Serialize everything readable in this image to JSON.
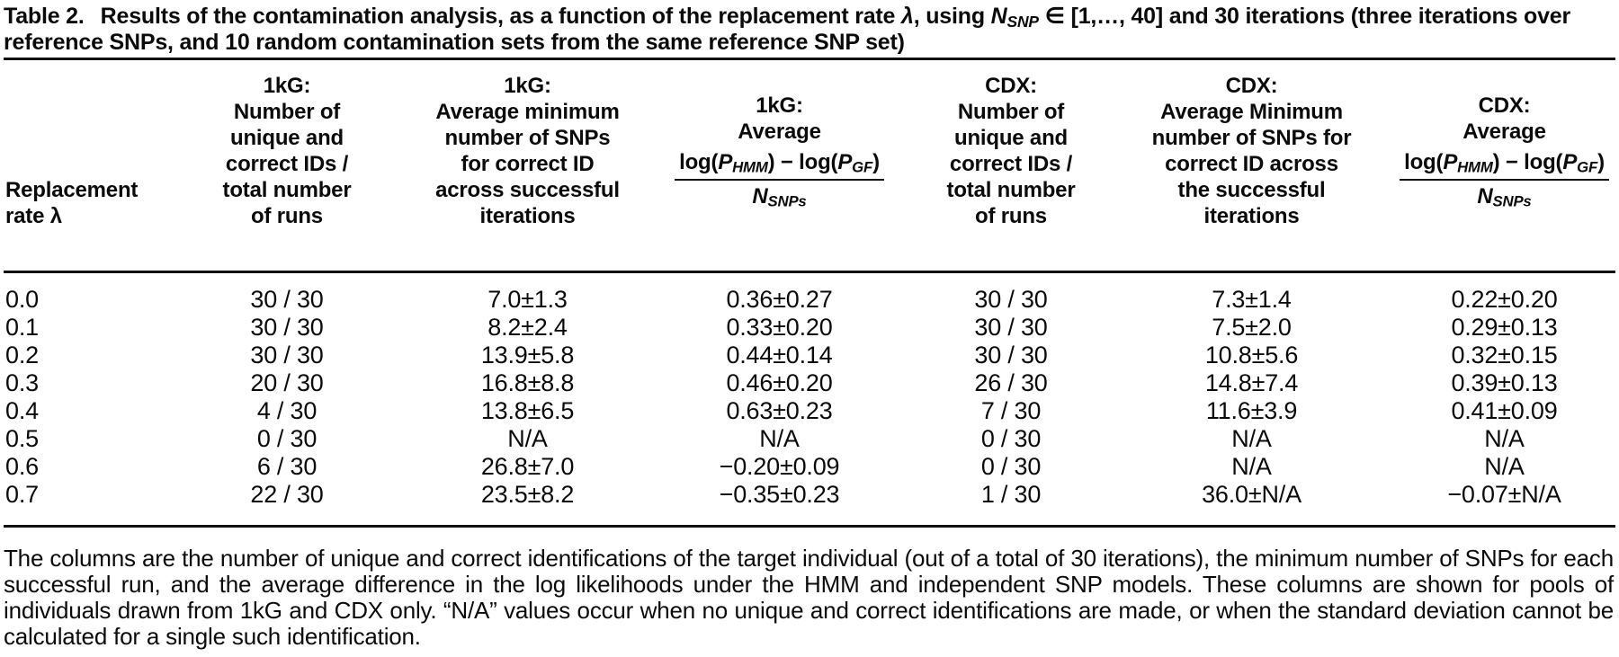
{
  "page": {
    "background": "#ffffff",
    "text_color": "#0b0b0b",
    "rule_color": "#101010"
  },
  "caption": {
    "label": "Table 2.",
    "segments": [
      {
        "t": "Results of the contamination analysis, as a function of the replacement rate "
      },
      {
        "t": "λ",
        "i": true
      },
      {
        "t": ", using "
      },
      {
        "t": "N",
        "i": true
      },
      {
        "t": "SNP",
        "i": true,
        "sub": true
      },
      {
        "t": " ∈ [1,…, 40] and 30 iterations (three iterations over reference SNPs, and 10 random contamination sets from the same reference SNP set)"
      }
    ]
  },
  "table": {
    "columns": [
      {
        "name": "replacement-rate",
        "header_lines": [
          "Replacement",
          "rate λ"
        ]
      },
      {
        "name": "1kg-unique-correct-ids",
        "header_lines": [
          "1kG:",
          "Number of",
          "unique and",
          "correct IDs /",
          "total number",
          "of runs"
        ]
      },
      {
        "name": "1kg-avg-min-snps",
        "header_lines": [
          "1kG:",
          "Average minimum",
          "number of SNPs",
          "for correct ID",
          "across successful",
          "iterations"
        ]
      },
      {
        "name": "1kg-avg-log-ratio",
        "header_lines": [
          "1kG:",
          "Average"
        ],
        "formula": {
          "numerator": [
            {
              "t": "log("
            },
            {
              "t": "P",
              "i": true
            },
            {
              "t": "HMM",
              "i": true,
              "sub": true
            },
            {
              "t": ") − log("
            },
            {
              "t": "P",
              "i": true
            },
            {
              "t": "GF",
              "i": true,
              "sub": true
            },
            {
              "t": ")"
            }
          ],
          "denominator": [
            {
              "t": "N",
              "i": true
            },
            {
              "t": "SNPs",
              "i": true,
              "sub": true
            }
          ]
        }
      },
      {
        "name": "cdx-unique-correct-ids",
        "header_lines": [
          "CDX:",
          "Number of",
          "unique and",
          "correct IDs /",
          "total number",
          "of runs"
        ]
      },
      {
        "name": "cdx-avg-min-snps",
        "header_lines": [
          "CDX:",
          "Average Minimum",
          "number of SNPs for",
          "correct ID across",
          "the successful",
          "iterations"
        ]
      },
      {
        "name": "cdx-avg-log-ratio",
        "header_lines": [
          "CDX:",
          "Average"
        ],
        "formula": {
          "numerator": [
            {
              "t": "log("
            },
            {
              "t": "P",
              "i": true
            },
            {
              "t": "HMM",
              "i": true,
              "sub": true
            },
            {
              "t": ") − log("
            },
            {
              "t": "P",
              "i": true
            },
            {
              "t": "GF",
              "i": true,
              "sub": true
            },
            {
              "t": ")"
            }
          ],
          "denominator": [
            {
              "t": "N",
              "i": true
            },
            {
              "t": "SNPs",
              "i": true,
              "sub": true
            }
          ]
        }
      }
    ],
    "rows": [
      [
        "0.0",
        "30 / 30",
        "7.0±1.3",
        "0.36±0.27",
        "30 / 30",
        "7.3±1.4",
        "0.22±0.20"
      ],
      [
        "0.1",
        "30 / 30",
        "8.2±2.4",
        "0.33±0.20",
        "30 / 30",
        "7.5±2.0",
        "0.29±0.13"
      ],
      [
        "0.2",
        "30 / 30",
        "13.9±5.8",
        "0.44±0.14",
        "30 / 30",
        "10.8±5.6",
        "0.32±0.15"
      ],
      [
        "0.3",
        "20 / 30",
        "16.8±8.8",
        "0.46±0.20",
        "26 / 30",
        "14.8±7.4",
        "0.39±0.13"
      ],
      [
        "0.4",
        "4 / 30",
        "13.8±6.5",
        "0.63±0.23",
        "7 / 30",
        "11.6±3.9",
        "0.41±0.09"
      ],
      [
        "0.5",
        "0 / 30",
        "N/A",
        "N/A",
        "0 / 30",
        "N/A",
        "N/A"
      ],
      [
        "0.6",
        "6 / 30",
        "26.8±7.0",
        "−0.20±0.09",
        "0 / 30",
        "N/A",
        "N/A"
      ],
      [
        "0.7",
        "22 / 30",
        "23.5±8.2",
        "−0.35±0.23",
        "1 / 30",
        "36.0±N/A",
        "−0.07±N/A"
      ]
    ]
  },
  "footnote": "The columns are the number of unique and correct identifications of the target individual (out of a total of 30 iterations), the minimum number of SNPs for each successful run, and the average difference in the log likelihoods under the HMM and independent SNP models. These columns are shown for pools of individuals drawn from 1kG and CDX only. “N/A” values occur when no unique and correct identifications are made, or when the standard deviation cannot be calculated for a single such identification."
}
